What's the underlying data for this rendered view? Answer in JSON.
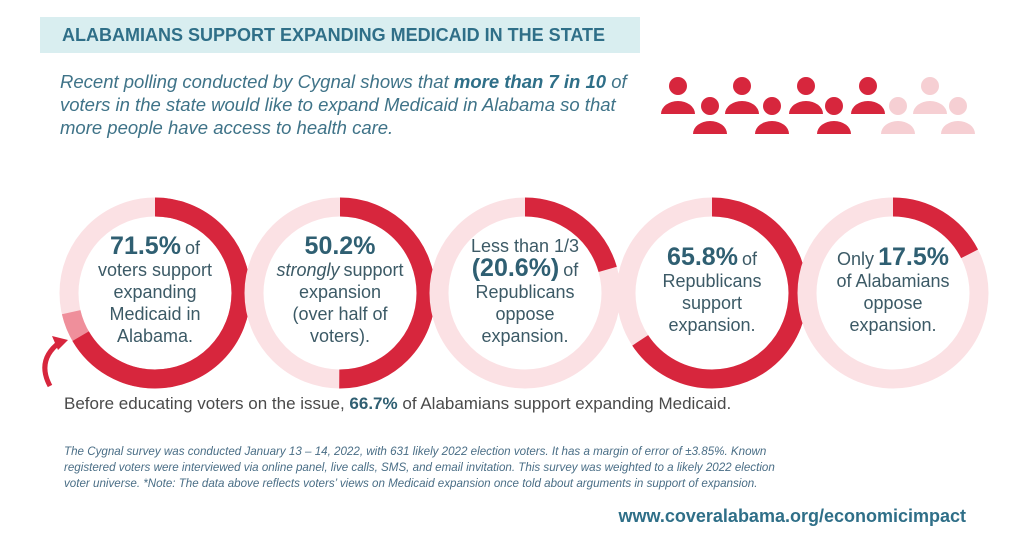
{
  "header": {
    "title": "ALABAMIANS SUPPORT EXPANDING MEDICAID IN THE STATE"
  },
  "intro": {
    "before": "Recent polling conducted by Cygnal shows that",
    "bold": "more than 7 in 10",
    "after": "of voters in the state would like to expand Medicaid in Alabama so that more people have access to health care."
  },
  "donuts": [
    {
      "value": 71.5,
      "value_label": "71.5%",
      "after": "of",
      "lines": [
        "voters support",
        "expanding",
        "Medicaid in",
        "Alabama."
      ]
    },
    {
      "value": 50.2,
      "value_label": "50.2%",
      "emphasis": "strongly",
      "lines": [
        "support",
        "expansion",
        "(over half of",
        "voters)."
      ]
    },
    {
      "value": 20.6,
      "intro": "Less than 1/3",
      "value_label": "(20.6%)",
      "after": "of",
      "lines": [
        "Republicans",
        "oppose",
        "expansion."
      ]
    },
    {
      "value": 65.8,
      "value_label": "65.8%",
      "after": "of",
      "lines": [
        "Republicans",
        "support",
        "expansion."
      ]
    },
    {
      "value": 17.5,
      "before": "Only",
      "value_label": "17.5%",
      "lines": [
        "of Alabamians",
        "oppose",
        "expansion."
      ]
    }
  ],
  "bottom": {
    "before": "Before educating voters on the issue,",
    "value": 66.7,
    "value_label": "66.7%",
    "after": "of Alabamians support expanding Medicaid."
  },
  "footnote": [
    "The Cygnal survey was conducted January 13 – 14, 2022, with 631 likely 2022 election voters. It has a margin of error of ±3.85%. Known",
    "registered voters were interviewed via online panel, live calls, SMS, and email invitation. This survey was weighted to a likely 2022 election",
    "voter universe. *Note: The data above reflects voters’ views on Medicaid expansion once told about arguments in support of expansion."
  ],
  "url": "www.coveralabama.org/economicimpact"
}
